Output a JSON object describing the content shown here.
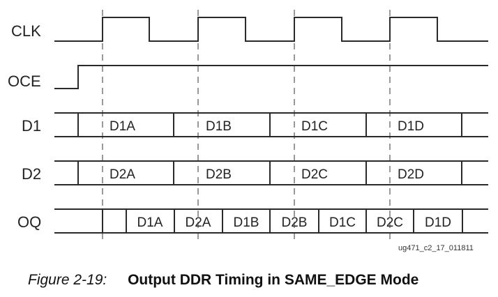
{
  "signals": [
    "CLK",
    "OCE",
    "D1",
    "D2",
    "OQ"
  ],
  "d1_values": [
    "D1A",
    "D1B",
    "D1C",
    "D1D"
  ],
  "d2_values": [
    "D2A",
    "D2B",
    "D2C",
    "D2D"
  ],
  "oq_values": [
    "",
    "D1A",
    "D2A",
    "D1B",
    "D2B",
    "D1C",
    "D2C",
    "D1D"
  ],
  "figure_code": "ug471_c2_17_011811",
  "caption": {
    "number": "Figure 2-19:",
    "title": "Output DDR Timing in SAME_EDGE Mode"
  }
}
